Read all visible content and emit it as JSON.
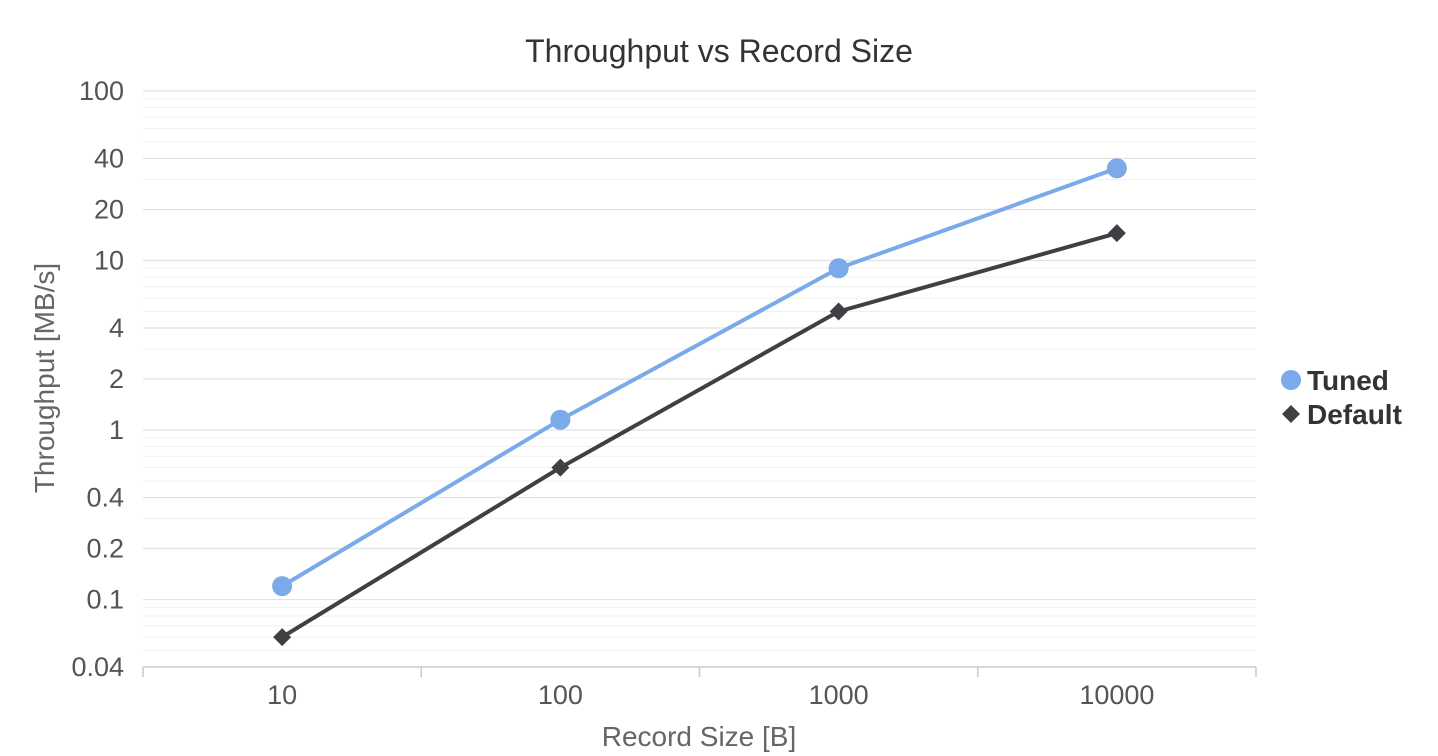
{
  "chart_data": {
    "type": "line",
    "title": "Throughput vs Record Size",
    "xlabel": "Record Size [B]",
    "ylabel": "Throughput [MB/s]",
    "x_scale": "log",
    "y_scale": "log",
    "x": [
      10,
      100,
      1000,
      10000
    ],
    "x_tick_labels": [
      "10",
      "100",
      "1000",
      "10000"
    ],
    "y_ticks": [
      100,
      40,
      20,
      10,
      4,
      2,
      1,
      0.4,
      0.2,
      0.1,
      0.04
    ],
    "y_tick_labels": [
      "100",
      "40",
      "20",
      "10",
      "4",
      "2",
      "1",
      "0.4",
      "0.2",
      "0.1",
      "0.04"
    ],
    "ylim": [
      0.04,
      100
    ],
    "grid": true,
    "legend_position": "right",
    "series": [
      {
        "name": "Tuned",
        "values": [
          0.12,
          1.15,
          9.0,
          35.0
        ],
        "color": "#7aaaea",
        "marker": "circle"
      },
      {
        "name": "Default",
        "values": [
          0.06,
          0.6,
          5.0,
          14.5
        ],
        "color": "#404044",
        "marker": "diamond"
      }
    ]
  }
}
